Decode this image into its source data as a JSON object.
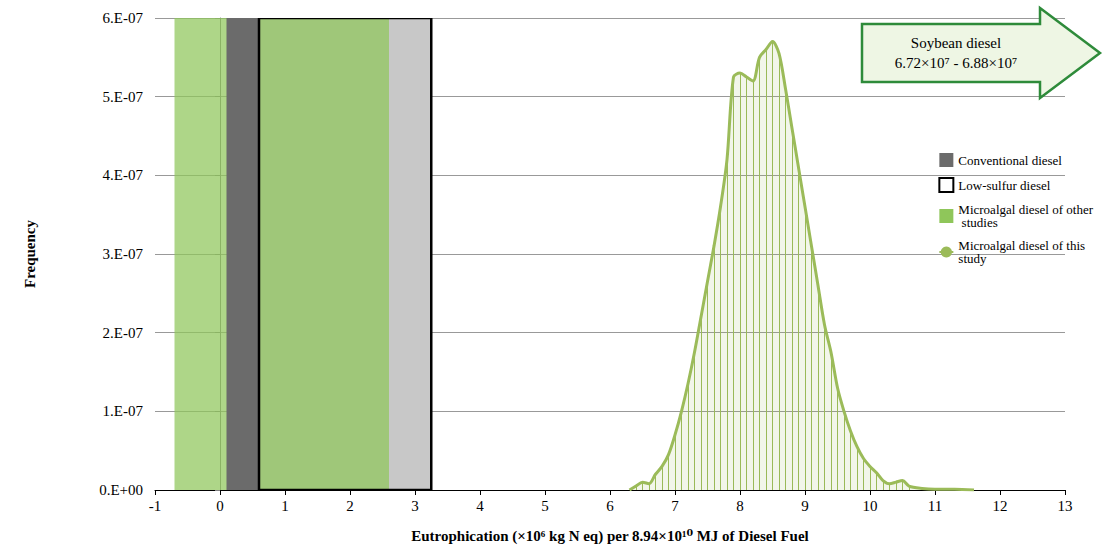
{
  "chart_data": {
    "type": "line",
    "x_label": "Eutrophication (×10⁶ kg N eq) per 8.94×10¹⁰ MJ of Diesel Fuel",
    "y_label": "Frequency",
    "xlim": [
      -1,
      13
    ],
    "xticks": [
      -1,
      0,
      1,
      2,
      3,
      4,
      5,
      6,
      7,
      8,
      9,
      10,
      11,
      12,
      13
    ],
    "ylim": [
      0,
      6e-07
    ],
    "yticks": [
      {
        "value": 0,
        "label": "0.E+00"
      },
      {
        "value": 1e-07,
        "label": "1.E-07"
      },
      {
        "value": 2e-07,
        "label": "2.E-07"
      },
      {
        "value": 3e-07,
        "label": "3.E-07"
      },
      {
        "value": 4e-07,
        "label": "4.E-07"
      },
      {
        "value": 5e-07,
        "label": "5.E-07"
      },
      {
        "value": 6e-07,
        "label": "6.E-07"
      }
    ],
    "grid": true,
    "legend": "right",
    "ranges": [
      {
        "name": "Conventional diesel",
        "type": "band",
        "color": "#6b6b6b",
        "from": 0.1,
        "to": 0.6
      },
      {
        "name": "Low-sulfur diesel",
        "type": "box",
        "color": "#c8c8c8",
        "from": 0.6,
        "to": 3.25
      },
      {
        "name": "Microalgal diesel of other studies",
        "type": "band",
        "color": "#8fc65a",
        "from": -0.7,
        "to": 2.6
      }
    ],
    "series": [
      {
        "name": "Microalgal diesel of this study",
        "color": "#9bbb59",
        "x": [
          6.3,
          6.4,
          6.5,
          6.6,
          6.7,
          6.8,
          6.9,
          7.0,
          7.1,
          7.2,
          7.3,
          7.4,
          7.5,
          7.6,
          7.7,
          7.8,
          7.9,
          8.0,
          8.1,
          8.2,
          8.3,
          8.4,
          8.5,
          8.6,
          8.7,
          8.8,
          8.9,
          9.0,
          9.1,
          9.2,
          9.3,
          9.4,
          9.5,
          9.6,
          9.7,
          9.8,
          9.9,
          10.0,
          10.1,
          10.2,
          10.3,
          10.4,
          10.5,
          10.6,
          10.8,
          11.0,
          11.3,
          11.6
        ],
        "values": [
          0,
          5e-09,
          1e-08,
          8e-09,
          2e-08,
          3e-08,
          4.5e-08,
          7e-08,
          1e-07,
          1.35e-07,
          1.75e-07,
          2.2e-07,
          2.65e-07,
          3.1e-07,
          3.6e-07,
          4.2e-07,
          5.25e-07,
          5.3e-07,
          5.25e-07,
          5.2e-07,
          5.5e-07,
          5.6e-07,
          5.7e-07,
          5.55e-07,
          5.1e-07,
          4.6e-07,
          4.1e-07,
          3.6e-07,
          3.1e-07,
          2.6e-07,
          2.1e-07,
          1.75e-07,
          1.3e-07,
          1e-07,
          7.5e-08,
          5.5e-08,
          4e-08,
          3e-08,
          2.2e-08,
          1.2e-08,
          8e-09,
          1e-08,
          1.2e-08,
          5e-09,
          2e-09,
          1e-09,
          1e-09,
          0
        ]
      }
    ],
    "annotation": {
      "text": "Soybean diesel",
      "range": [
        67200000,
        68800000
      ],
      "range_label": "6.72×10⁷ - 6.88×10⁷",
      "color": "#2e8b3a"
    }
  }
}
